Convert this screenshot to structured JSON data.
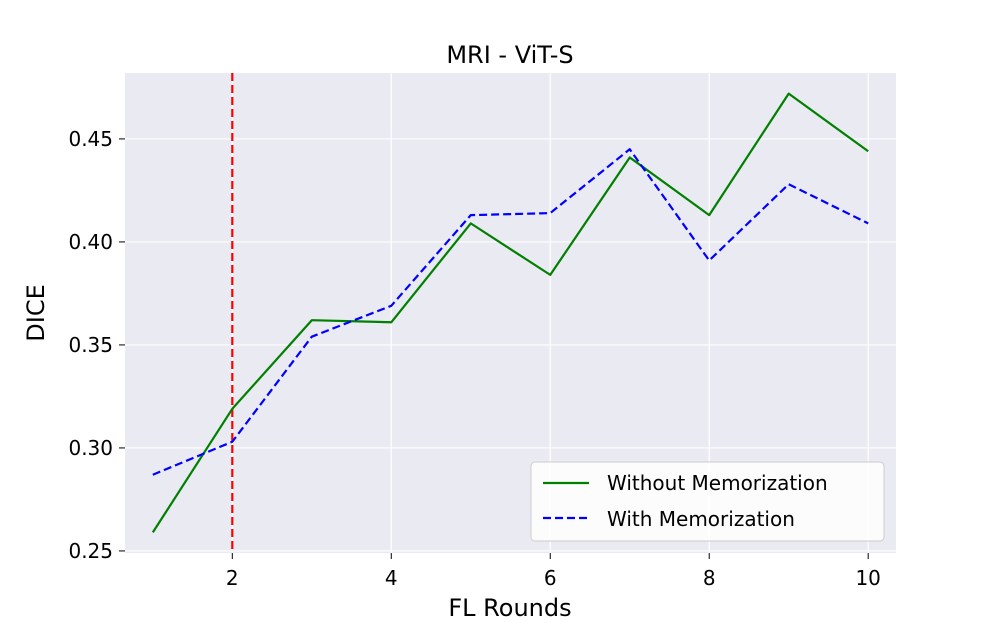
{
  "chart_data": {
    "type": "line",
    "title": "MRI - ViT-S",
    "xlabel": "FL Rounds",
    "ylabel": "DICE",
    "x": [
      1,
      2,
      3,
      4,
      5,
      6,
      7,
      8,
      9,
      10
    ],
    "xlim": [
      0.65,
      10.35
    ],
    "ylim": [
      0.249,
      0.482
    ],
    "xticks": [
      2,
      4,
      6,
      8,
      10
    ],
    "xtick_labels": [
      "2",
      "4",
      "6",
      "8",
      "10"
    ],
    "yticks": [
      0.25,
      0.3,
      0.35,
      0.4,
      0.45
    ],
    "ytick_labels": [
      "0.25",
      "0.30",
      "0.35",
      "0.40",
      "0.45"
    ],
    "grid": true,
    "legend_position": "lower-right",
    "series": [
      {
        "name": "Without Memorization",
        "color": "#008000",
        "line_style": "solid",
        "values": [
          0.259,
          0.319,
          0.362,
          0.361,
          0.409,
          0.384,
          0.441,
          0.413,
          0.472,
          0.444
        ]
      },
      {
        "name": "With Memorization",
        "color": "#0000ff",
        "line_style": "dashed",
        "values": [
          0.287,
          0.303,
          0.354,
          0.369,
          0.413,
          0.414,
          0.445,
          0.391,
          0.428,
          0.409
        ]
      }
    ],
    "vline": {
      "x": 2,
      "color": "#ff0000",
      "line_style": "dashed"
    },
    "plot_background": "#eaeaf2",
    "grid_color": "#ffffff"
  }
}
